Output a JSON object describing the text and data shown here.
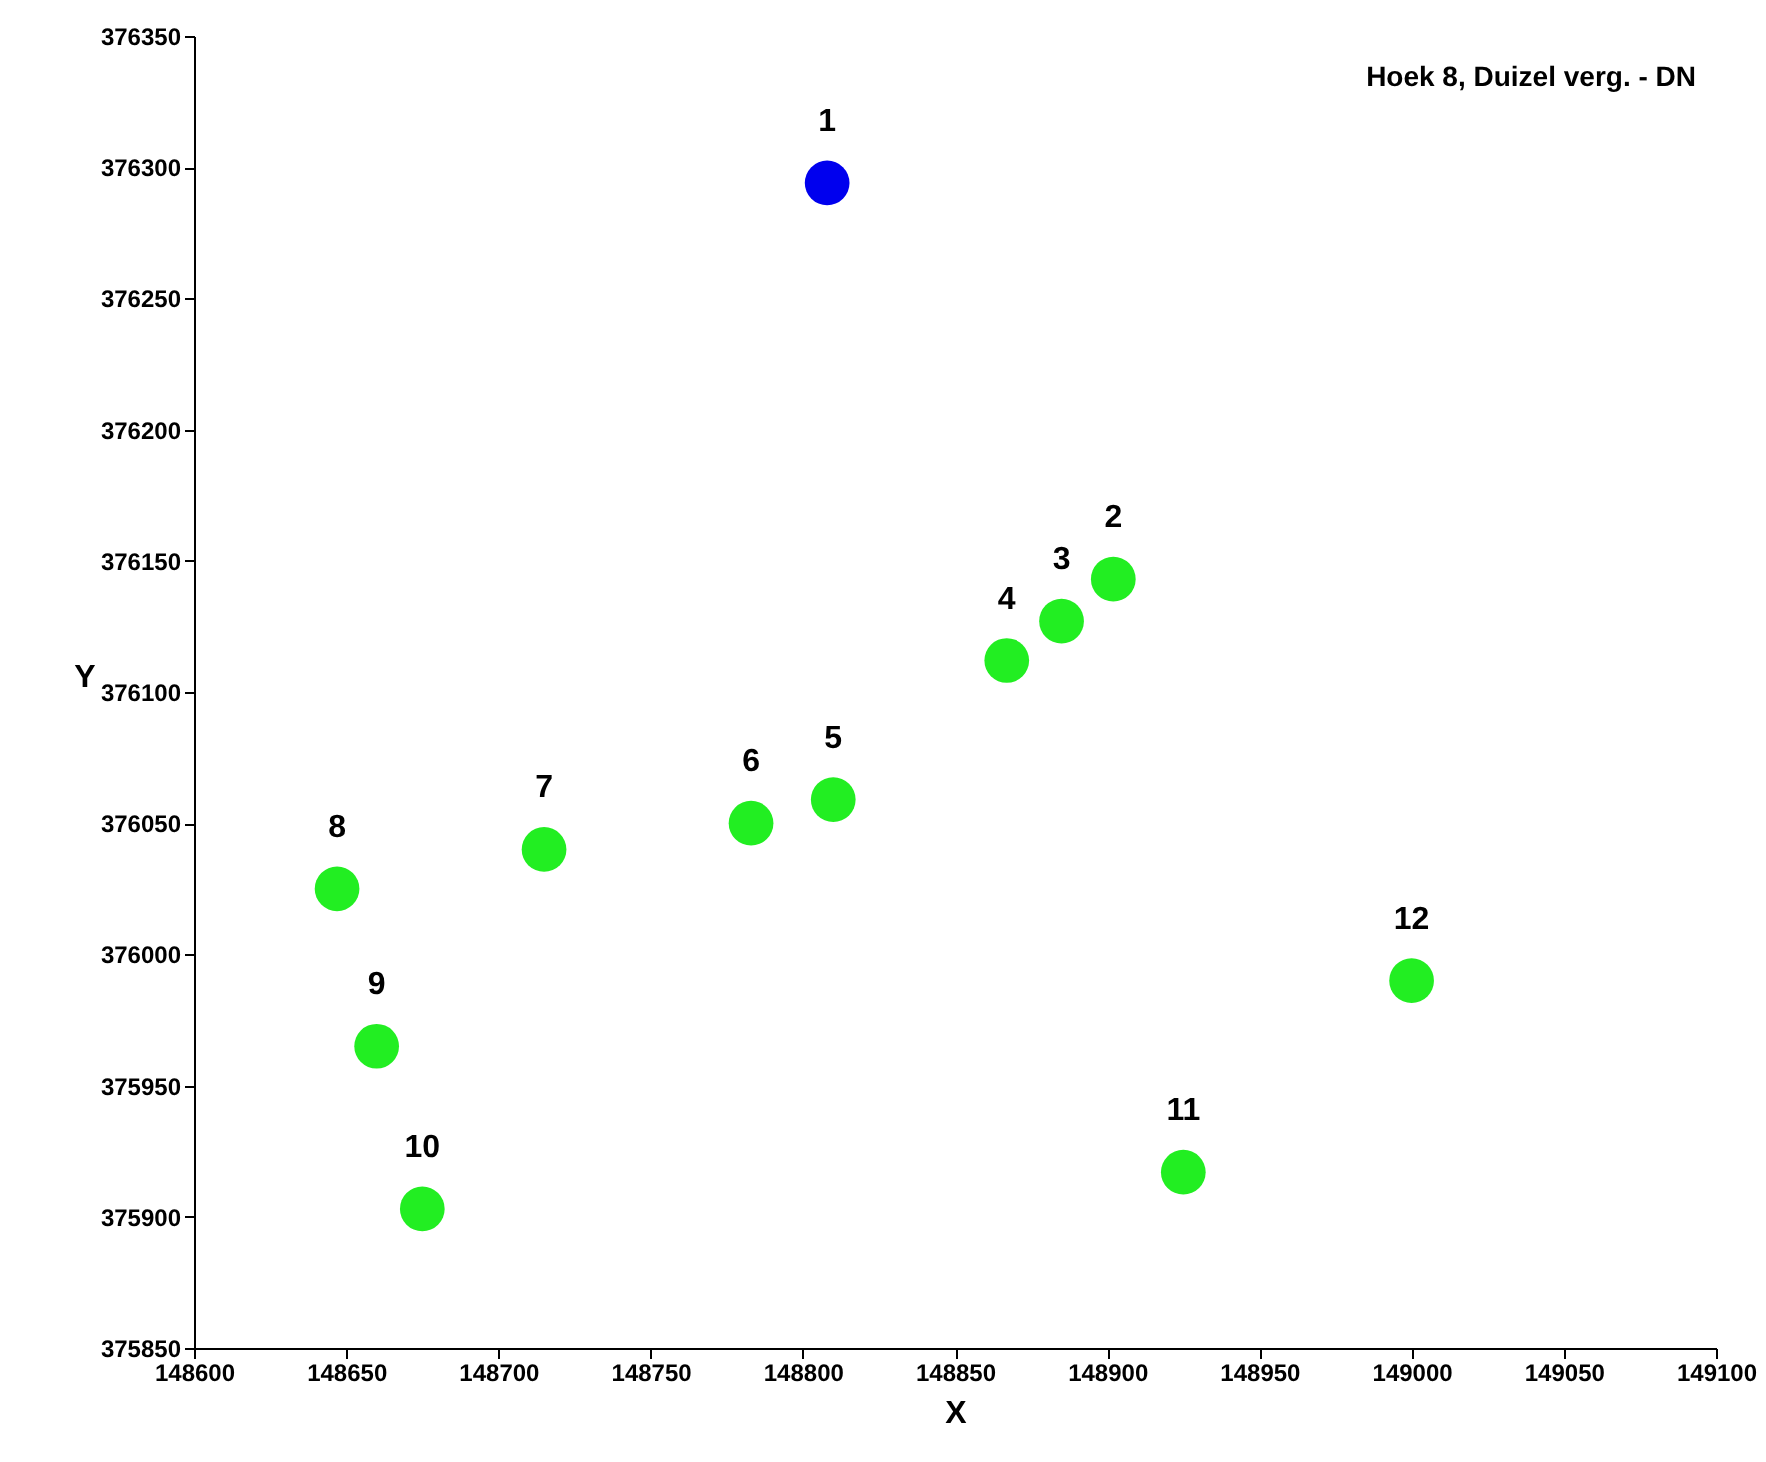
{
  "chart_data": {
    "type": "scatter",
    "title": "Hoek 8, Duizel verg. - DN",
    "xlabel": "X",
    "ylabel": "Y",
    "xlim": [
      148600,
      149100
    ],
    "xticks": [
      148600,
      148650,
      148700,
      148750,
      148800,
      148850,
      148900,
      148950,
      149000,
      149050,
      149100
    ],
    "ylim": [
      375850,
      376350
    ],
    "yticks": [
      375850,
      375900,
      375950,
      376000,
      376050,
      376100,
      376150,
      376200,
      376250,
      376300,
      376350
    ],
    "marker": "circle",
    "series": [
      {
        "color": "#0000ee",
        "x": [
          148808
        ],
        "values": [
          376294
        ]
      },
      {
        "color": "#22ee22",
        "x": [
          148902,
          148885,
          148867,
          148810,
          148783,
          148715,
          148647,
          148660,
          148675,
          148925,
          149000
        ],
        "values": [
          376143,
          376127,
          376112,
          376059,
          376050,
          376040,
          376025,
          375965,
          375903,
          375917,
          375990
        ]
      }
    ],
    "annotations": [
      {
        "text": "1",
        "x": 148808,
        "y": 376294
      },
      {
        "text": "2",
        "x": 148902,
        "y": 376143
      },
      {
        "text": "3",
        "x": 148885,
        "y": 376127
      },
      {
        "text": "4",
        "x": 148867,
        "y": 376112
      },
      {
        "text": "5",
        "x": 148810,
        "y": 376059
      },
      {
        "text": "6",
        "x": 148783,
        "y": 376050
      },
      {
        "text": "7",
        "x": 148715,
        "y": 376040
      },
      {
        "text": "8",
        "x": 148647,
        "y": 376025
      },
      {
        "text": "9",
        "x": 148660,
        "y": 375965
      },
      {
        "text": "10",
        "x": 148675,
        "y": 375903
      },
      {
        "text": "11",
        "x": 148925,
        "y": 375917
      },
      {
        "text": "12",
        "x": 149000,
        "y": 375990
      }
    ]
  }
}
